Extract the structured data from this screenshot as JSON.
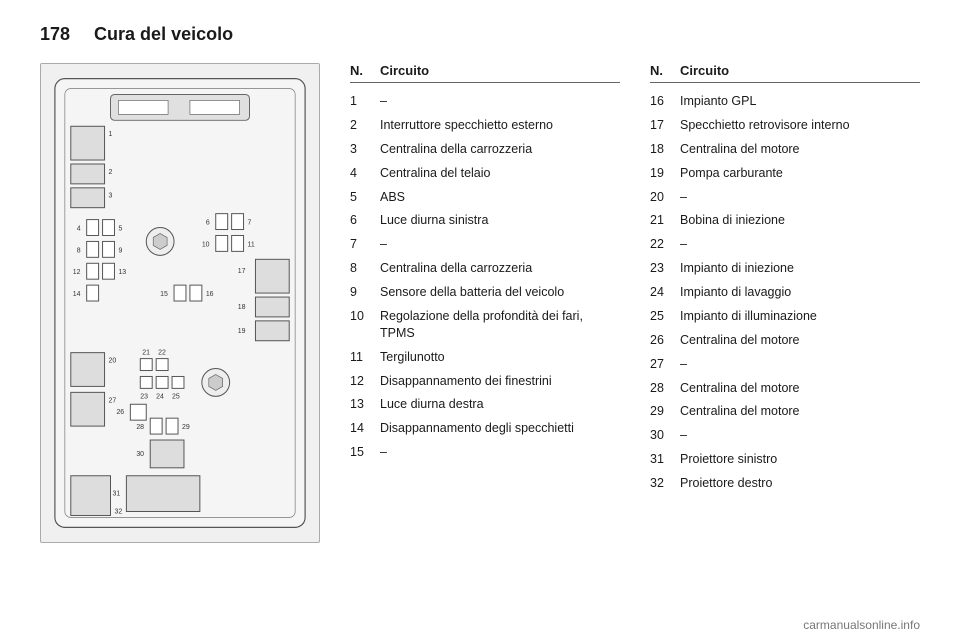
{
  "page_number": "178",
  "chapter_title": "Cura del veicolo",
  "column_header_num": "N.",
  "column_header_desc": "Circuito",
  "left_circuits": [
    {
      "num": "1",
      "desc": "–"
    },
    {
      "num": "2",
      "desc": "Interruttore specchietto esterno"
    },
    {
      "num": "3",
      "desc": "Centralina della carrozzeria"
    },
    {
      "num": "4",
      "desc": "Centralina del telaio"
    },
    {
      "num": "5",
      "desc": "ABS"
    },
    {
      "num": "6",
      "desc": "Luce diurna sinistra"
    },
    {
      "num": "7",
      "desc": "–"
    },
    {
      "num": "8",
      "desc": "Centralina della carrozzeria"
    },
    {
      "num": "9",
      "desc": "Sensore della batteria del veicolo"
    },
    {
      "num": "10",
      "desc": "Regolazione della profondità dei fari, TPMS"
    },
    {
      "num": "11",
      "desc": "Tergilunotto"
    },
    {
      "num": "12",
      "desc": "Disappannamento dei finestrini"
    },
    {
      "num": "13",
      "desc": "Luce diurna destra"
    },
    {
      "num": "14",
      "desc": "Disappannamento degli spec­chietti"
    },
    {
      "num": "15",
      "desc": "–"
    }
  ],
  "right_circuits": [
    {
      "num": "16",
      "desc": "Impianto GPL"
    },
    {
      "num": "17",
      "desc": "Specchietto retrovisore interno"
    },
    {
      "num": "18",
      "desc": "Centralina del motore"
    },
    {
      "num": "19",
      "desc": "Pompa carburante"
    },
    {
      "num": "20",
      "desc": "–"
    },
    {
      "num": "21",
      "desc": "Bobina di iniezione"
    },
    {
      "num": "22",
      "desc": "–"
    },
    {
      "num": "23",
      "desc": "Impianto di iniezione"
    },
    {
      "num": "24",
      "desc": "Impianto di lavaggio"
    },
    {
      "num": "25",
      "desc": "Impianto di illuminazione"
    },
    {
      "num": "26",
      "desc": "Centralina del motore"
    },
    {
      "num": "27",
      "desc": "–"
    },
    {
      "num": "28",
      "desc": "Centralina del motore"
    },
    {
      "num": "29",
      "desc": "Centralina del motore"
    },
    {
      "num": "30",
      "desc": "–"
    },
    {
      "num": "31",
      "desc": "Proiettore sinistro"
    },
    {
      "num": "32",
      "desc": "Proiettore destro"
    }
  ],
  "footer_text": "carmanualsonline.info",
  "diagram_labels": [
    "1",
    "2",
    "3",
    "4",
    "5",
    "6",
    "7",
    "8",
    "9",
    "10",
    "11",
    "12",
    "13",
    "14",
    "15",
    "16",
    "17",
    "18",
    "19",
    "20",
    "21",
    "22",
    "23",
    "24",
    "25",
    "26",
    "27",
    "28",
    "29",
    "30",
    "31",
    "32"
  ]
}
